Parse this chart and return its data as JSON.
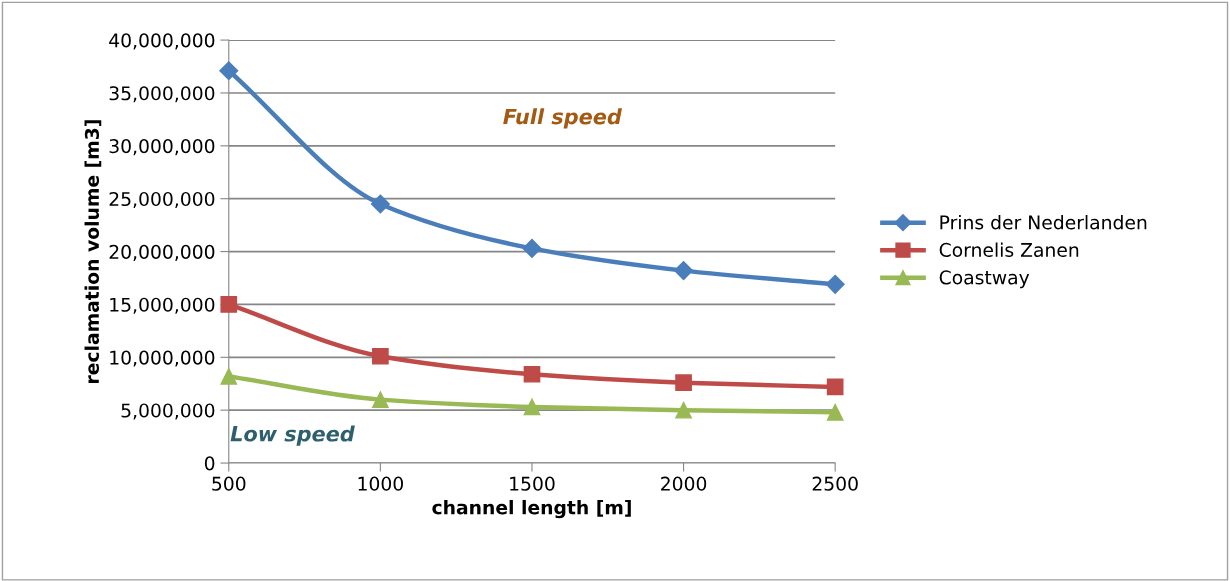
{
  "chart_data": {
    "type": "line",
    "xlabel": "channel length [m]",
    "ylabel": "reclamation volume [m3]",
    "x": [
      500,
      1000,
      1500,
      2000,
      2500
    ],
    "series": [
      {
        "name": "Prins der Nederlanden",
        "color": "#4a7ebb",
        "marker": "diamond",
        "values": [
          37100000,
          24500000,
          20300000,
          18200000,
          16900000
        ]
      },
      {
        "name": "Cornelis Zanen",
        "color": "#be4b48",
        "marker": "square",
        "values": [
          15000000,
          10100000,
          8400000,
          7600000,
          7200000
        ]
      },
      {
        "name": "Coastway",
        "color": "#98b954",
        "marker": "triangle",
        "values": [
          8200000,
          6000000,
          5300000,
          5000000,
          4800000
        ]
      }
    ],
    "xlim": [
      500,
      2500
    ],
    "xticks": [
      500,
      1000,
      1500,
      2000,
      2500
    ],
    "ylim": [
      0,
      40000000
    ],
    "yticks": [
      {
        "value": 0,
        "label": "0"
      },
      {
        "value": 5000000,
        "label": "5,000,000"
      },
      {
        "value": 10000000,
        "label": "10,000,000"
      },
      {
        "value": 15000000,
        "label": "15,000,000"
      },
      {
        "value": 20000000,
        "label": "20,000,000"
      },
      {
        "value": 25000000,
        "label": "25,000,000"
      },
      {
        "value": 30000000,
        "label": "30,000,000"
      },
      {
        "value": 35000000,
        "label": "35,000,000"
      },
      {
        "value": 40000000,
        "label": "40,000,000"
      }
    ],
    "grid": "y",
    "legend": "right",
    "line_style": "solid",
    "annotations": [
      "Full speed",
      "Low speed"
    ]
  }
}
